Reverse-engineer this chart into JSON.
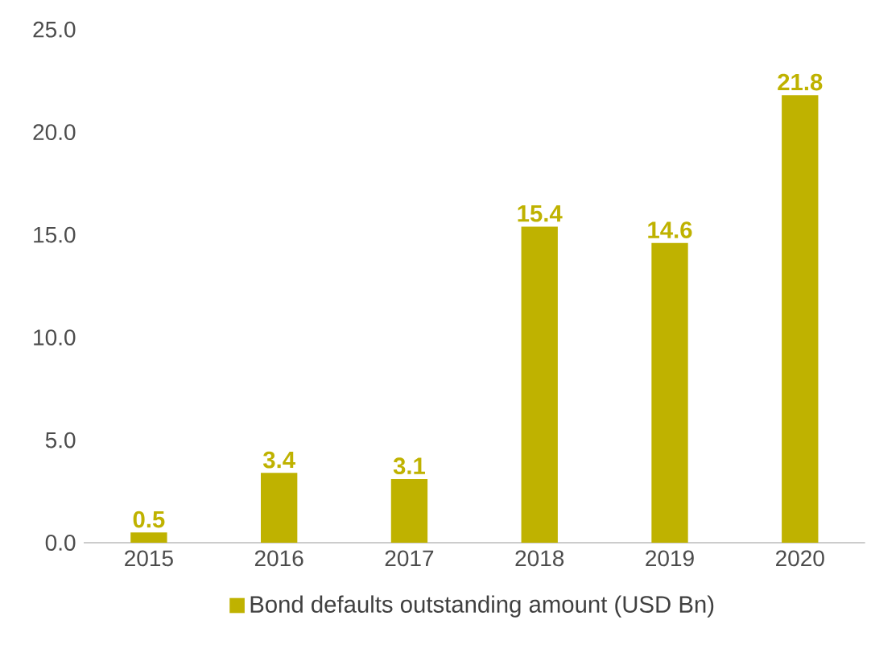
{
  "chart_data": {
    "type": "bar",
    "categories": [
      "2015",
      "2016",
      "2017",
      "2018",
      "2019",
      "2020"
    ],
    "series": [
      {
        "name": "Bond defaults outstanding amount (USD Bn)",
        "color": "#bfb200",
        "values": [
          0.5,
          3.4,
          3.1,
          15.4,
          14.6,
          21.8
        ]
      }
    ],
    "ylim": [
      0,
      25
    ],
    "yticks": [
      {
        "value": 0,
        "label": "0.0"
      },
      {
        "value": 5,
        "label": "5.0"
      },
      {
        "value": 10,
        "label": "10.0"
      },
      {
        "value": 15,
        "label": "15.0"
      },
      {
        "value": 20,
        "label": "20.0"
      },
      {
        "value": 25,
        "label": "25.0"
      }
    ],
    "data_labels": true,
    "grid": false,
    "legend": "bottom"
  }
}
